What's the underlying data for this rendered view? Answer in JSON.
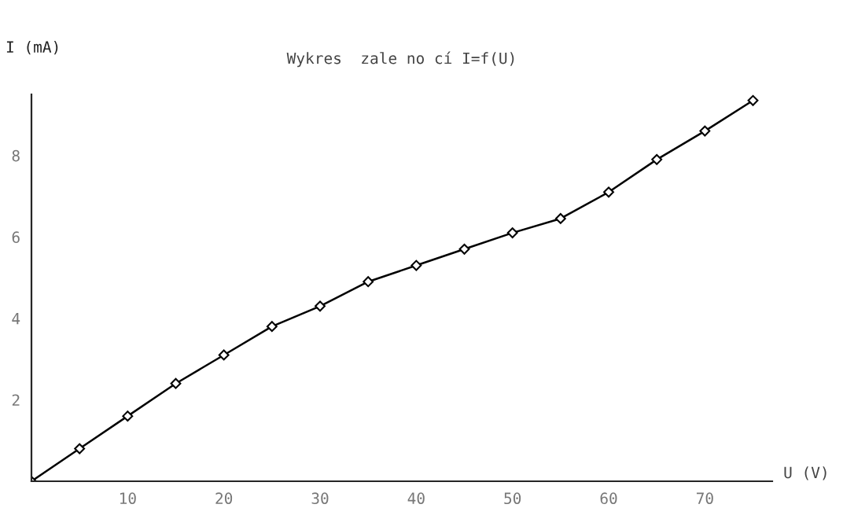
{
  "chart_data": {
    "type": "line",
    "title": "Wykres  zale no cí I=f(U)",
    "xlabel": "U (V)",
    "ylabel": "I (mA)",
    "x": [
      0,
      5,
      10,
      15,
      20,
      25,
      30,
      35,
      40,
      45,
      50,
      55,
      60,
      65,
      70,
      75
    ],
    "series": [
      {
        "color": "#000000",
        "values": [
          0,
          0.8,
          1.6,
          2.4,
          3.1,
          3.8,
          4.3,
          4.9,
          5.3,
          5.7,
          6.1,
          6.45,
          7.1,
          7.9,
          8.6,
          9.35
        ]
      }
    ],
    "xlim": [
      0,
      77
    ],
    "xticks": [
      10,
      20,
      30,
      40,
      50,
      60,
      70
    ],
    "ylim": [
      0,
      9.5
    ],
    "yticks": [
      2,
      4,
      6,
      8
    ],
    "marker": "diamond",
    "line_style": "solid",
    "grid": false
  }
}
